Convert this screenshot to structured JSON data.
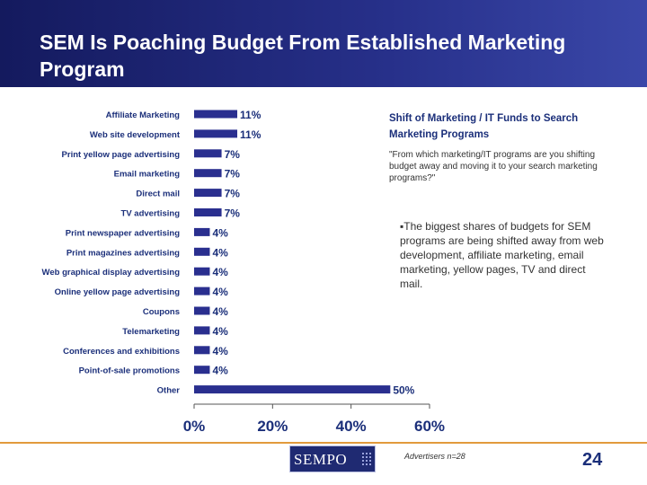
{
  "slide": {
    "title": "SEM Is Poaching Budget From Established Marketing Program",
    "subtitle": "Shift of Marketing / IT Funds to Search Marketing Programs",
    "quote": "\"From which marketing/IT programs are you shifting budget away and moving it to your search marketing programs?\"",
    "bullet": "▪The biggest shares of budgets for SEM programs are being shifted away from web development, affiliate marketing, email marketing, yellow pages, TV and direct mail.",
    "note": "Advertisers n=28",
    "page_number": "24",
    "logo_text": "SEMPO"
  },
  "colors": {
    "header": "#1f2a72",
    "bar": "#2a2f8f",
    "footer_line": "#e29a3c"
  },
  "chart_data": {
    "type": "bar",
    "orientation": "horizontal",
    "categories": [
      "Affiliate Marketing",
      "Web site development",
      "Print yellow page advertising",
      "Email marketing",
      "Direct mail",
      "TV advertising",
      "Print newspaper advertising",
      "Print magazines advertising",
      "Web graphical display advertising",
      "Online yellow page advertising",
      "Coupons",
      "Telemarketing",
      "Conferences and exhibitions",
      "Point-of-sale promotions",
      "Other"
    ],
    "values": [
      11,
      11,
      7,
      7,
      7,
      7,
      4,
      4,
      4,
      4,
      4,
      4,
      4,
      4,
      50
    ],
    "value_labels": [
      "11%",
      "11%",
      "7%",
      "7%",
      "7%",
      "7%",
      "4%",
      "4%",
      "4%",
      "4%",
      "4%",
      "4%",
      "4%",
      "4%",
      "50%"
    ],
    "xlim": [
      0,
      60
    ],
    "xticks": [
      "0%",
      "20%",
      "40%",
      "60%"
    ],
    "grid": false
  }
}
